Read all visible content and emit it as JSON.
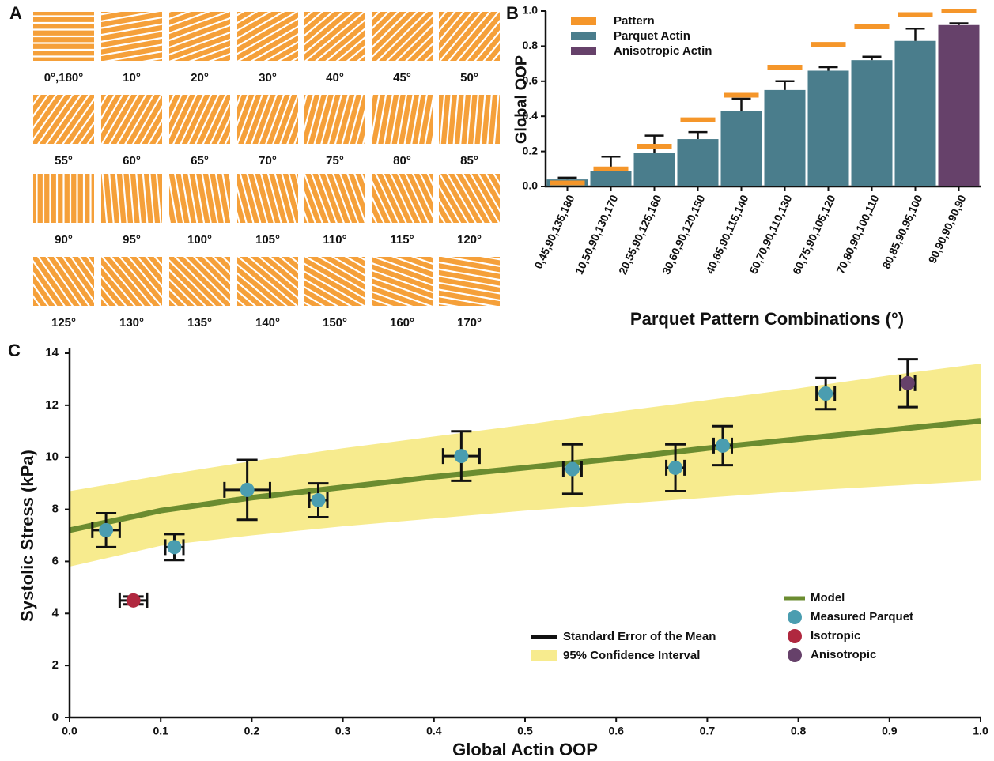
{
  "chart_data": [
    {
      "type": "pattern",
      "panel_label": "A",
      "color": "#f5a03a",
      "patterns": [
        {
          "value": 0,
          "label": "0°,180°"
        },
        {
          "value": 10,
          "label": "10°"
        },
        {
          "value": 20,
          "label": "20°"
        },
        {
          "value": 30,
          "label": "30°"
        },
        {
          "value": 40,
          "label": "40°"
        },
        {
          "value": 45,
          "label": "45°"
        },
        {
          "value": 50,
          "label": "50°"
        },
        {
          "value": 55,
          "label": "55°"
        },
        {
          "value": 60,
          "label": "60°"
        },
        {
          "value": 65,
          "label": "65°"
        },
        {
          "value": 70,
          "label": "70°"
        },
        {
          "value": 75,
          "label": "75°"
        },
        {
          "value": 80,
          "label": "80°"
        },
        {
          "value": 85,
          "label": "85°"
        },
        {
          "value": 90,
          "label": "90°"
        },
        {
          "value": 95,
          "label": "95°"
        },
        {
          "value": 100,
          "label": "100°"
        },
        {
          "value": 105,
          "label": "105°"
        },
        {
          "value": 110,
          "label": "110°"
        },
        {
          "value": 115,
          "label": "115°"
        },
        {
          "value": 120,
          "label": "120°"
        },
        {
          "value": 125,
          "label": "125°"
        },
        {
          "value": 130,
          "label": "130°"
        },
        {
          "value": 135,
          "label": "135°"
        },
        {
          "value": 140,
          "label": "140°"
        },
        {
          "value": 150,
          "label": "150°"
        },
        {
          "value": 160,
          "label": "160°"
        },
        {
          "value": 170,
          "label": "170°"
        }
      ]
    },
    {
      "type": "bar",
      "panel_label": "B",
      "y_label": "Global OOP",
      "x_label": "Parquet Pattern Combinations (°)",
      "categories": [
        "0,45,90,135,180",
        "10,50,90,130,170",
        "20,55,90,125,160",
        "30,60,90,120,150",
        "40,65,90,115,140",
        "50,70,90,110,130",
        "60,75,90,105,120",
        "70,80,90,100,110",
        "80,85,90,95,100",
        "90,90,90,90,90"
      ],
      "ylim": [
        0,
        1
      ],
      "yticks": [
        {
          "value": 0,
          "label": "0.0"
        },
        0.2,
        0.4,
        0.6,
        0.8,
        {
          "value": 1,
          "label": "1.0"
        }
      ],
      "series": [
        {
          "name": "Pattern",
          "color": "#f5962a",
          "style": "dash",
          "values": [
            0.02,
            0.1,
            0.23,
            0.38,
            0.52,
            0.68,
            0.81,
            0.91,
            0.98,
            1.0
          ]
        },
        {
          "name": "Parquet Actin",
          "color": "#4a7d8c",
          "values": [
            0.04,
            0.09,
            0.19,
            0.27,
            0.43,
            0.55,
            0.66,
            0.72,
            0.83,
            null
          ],
          "errors": [
            0.01,
            0.08,
            0.1,
            0.04,
            0.07,
            0.05,
            0.02,
            0.02,
            0.07,
            null
          ]
        },
        {
          "name": "Anisotropic Actin",
          "color": "#66416a",
          "values": [
            null,
            null,
            null,
            null,
            null,
            null,
            null,
            null,
            null,
            0.92
          ],
          "errors": [
            null,
            null,
            null,
            null,
            null,
            null,
            null,
            null,
            null,
            0.01
          ]
        }
      ]
    },
    {
      "type": "scatter",
      "panel_label": "C",
      "y_label": "Systolic Stress (kPa)",
      "x_label": "Global Actin OOP",
      "xlim": [
        0,
        1
      ],
      "xticks": [
        {
          "value": 0,
          "label": "0.0"
        },
        0.1,
        0.2,
        0.3,
        0.4,
        0.5,
        0.6,
        0.7,
        0.8,
        0.9,
        {
          "value": 1,
          "label": "1.0"
        }
      ],
      "ylim": [
        0,
        14
      ],
      "yticks": [
        0,
        2,
        4,
        6,
        8,
        10,
        12,
        14
      ],
      "error_legend": "Standard Error of the Mean",
      "error_color": "#111111",
      "series": [
        {
          "name": "95% Confidence Interval",
          "type": "band",
          "color": "#f7eb8e",
          "x": [
            0,
            0.1,
            0.2,
            0.3,
            0.4,
            0.5,
            0.6,
            0.7,
            0.8,
            0.9,
            1
          ],
          "lower": [
            5.8,
            6.6,
            7.0,
            7.35,
            7.65,
            7.95,
            8.2,
            8.45,
            8.7,
            8.9,
            9.1
          ],
          "upper": [
            8.7,
            9.3,
            9.85,
            10.35,
            10.8,
            11.25,
            11.75,
            12.2,
            12.65,
            13.15,
            13.6
          ]
        },
        {
          "name": "Model",
          "type": "line",
          "color": "#6b8c30",
          "x": [
            0,
            0.1,
            0.2,
            0.3,
            0.4,
            0.5,
            0.6,
            0.7,
            0.8,
            0.9,
            1
          ],
          "y": [
            7.2,
            7.95,
            8.45,
            8.85,
            9.25,
            9.6,
            9.95,
            10.35,
            10.7,
            11.05,
            11.4
          ]
        },
        {
          "name": "Measured Parquet",
          "type": "points",
          "color": "#4a9db0",
          "x": [
            0.04,
            0.115,
            0.195,
            0.273,
            0.43,
            0.552,
            0.665,
            0.717,
            0.83
          ],
          "y": [
            7.2,
            6.55,
            8.75,
            8.35,
            10.05,
            9.55,
            9.6,
            10.45,
            12.45
          ],
          "xerr": [
            0.015,
            0.01,
            0.025,
            0.01,
            0.02,
            0.01,
            0.01,
            0.01,
            0.01
          ],
          "yerr": [
            0.65,
            0.5,
            1.15,
            0.65,
            0.95,
            0.95,
            0.9,
            0.75,
            0.6
          ]
        },
        {
          "name": "Isotropic",
          "type": "points",
          "color": "#b0283f",
          "x": [
            0.07
          ],
          "y": [
            4.5
          ],
          "xerr": [
            0.015
          ],
          "yerr": [
            0.15
          ]
        },
        {
          "name": "Anisotropic",
          "type": "points",
          "color": "#66416a",
          "x": [
            0.92
          ],
          "y": [
            12.85
          ],
          "xerr": [
            0.008
          ],
          "yerr": [
            0.92
          ]
        }
      ]
    }
  ]
}
